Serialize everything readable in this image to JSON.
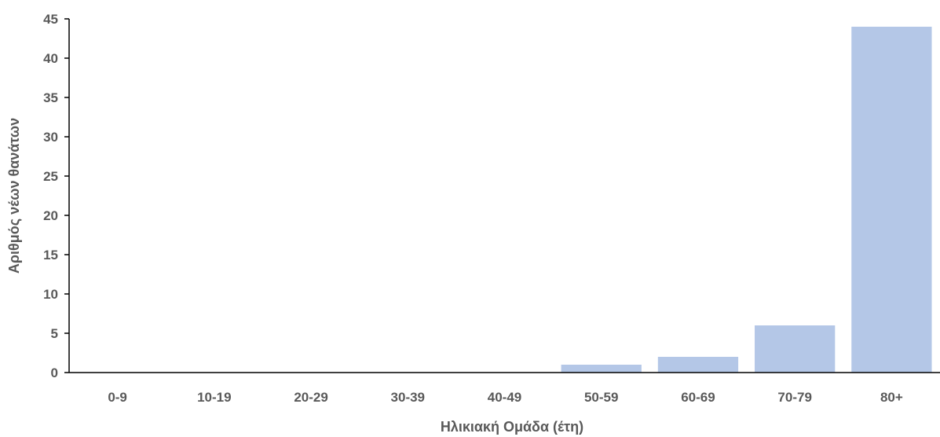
{
  "chart_data": {
    "type": "bar",
    "title": "",
    "xlabel": "Ηλικιακή Ομάδα (έτη)",
    "ylabel": "Αριθμός νέων θανάτων",
    "categories": [
      "0-9",
      "10-19",
      "20-29",
      "30-39",
      "40-49",
      "50-59",
      "60-69",
      "70-79",
      "80+"
    ],
    "values": [
      0,
      0,
      0,
      0,
      0,
      1,
      2,
      6,
      44
    ],
    "ylim": [
      0,
      45
    ],
    "yticks": [
      0,
      5,
      10,
      15,
      20,
      25,
      30,
      35,
      40,
      45
    ],
    "grid": false,
    "bar_color": "#B4C7E7",
    "axis_color": "#000000"
  }
}
